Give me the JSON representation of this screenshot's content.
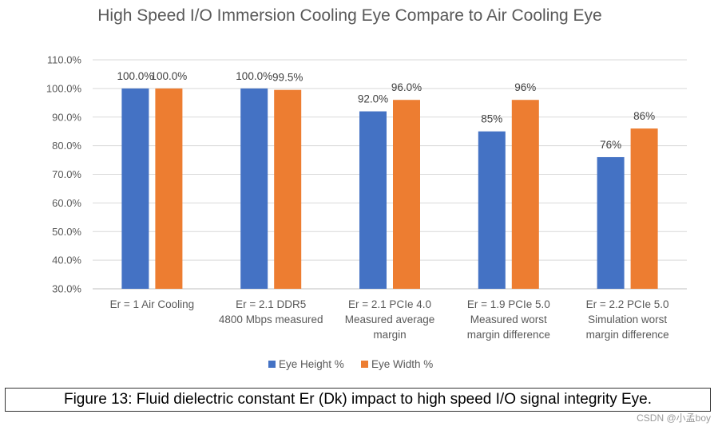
{
  "chart_data": {
    "type": "bar",
    "title": "High Speed I/O Immersion Cooling Eye Compare to Air Cooling Eye",
    "categories": [
      [
        "Er = 1 Air Cooling"
      ],
      [
        "Er = 2.1  DDR5",
        "4800 Mbps measured"
      ],
      [
        "Er = 2.1 PCIe 4.0",
        "Measured average",
        "margin"
      ],
      [
        "Er = 1.9 PCIe 5.0",
        "Measured worst",
        "margin difference"
      ],
      [
        "Er = 2.2 PCIe 5.0",
        "Simulation worst",
        "margin difference"
      ]
    ],
    "series": [
      {
        "name": "Eye Height %",
        "color": "#4472C4",
        "values": [
          100,
          100,
          92,
          85,
          76
        ],
        "labels": [
          "100.0%",
          "100.0%",
          "92.0%",
          "85%",
          "76%"
        ]
      },
      {
        "name": "Eye Width %",
        "color": "#ED7D31",
        "values": [
          100,
          99.5,
          96,
          96,
          86
        ],
        "labels": [
          "100.0%",
          "99.5%",
          "96.0%",
          "96%",
          "86%"
        ]
      }
    ],
    "ylim": [
      30,
      110
    ],
    "yticks": [
      "30.0%",
      "40.0%",
      "50.0%",
      "60.0%",
      "70.0%",
      "80.0%",
      "90.0%",
      "100.0%",
      "110.0%"
    ],
    "grid": true,
    "legend": "bottom"
  },
  "caption": "Figure 13: Fluid dielectric constant Er (Dk) impact to high speed I/O signal integrity Eye.",
  "watermark": "CSDN @小孟boy"
}
